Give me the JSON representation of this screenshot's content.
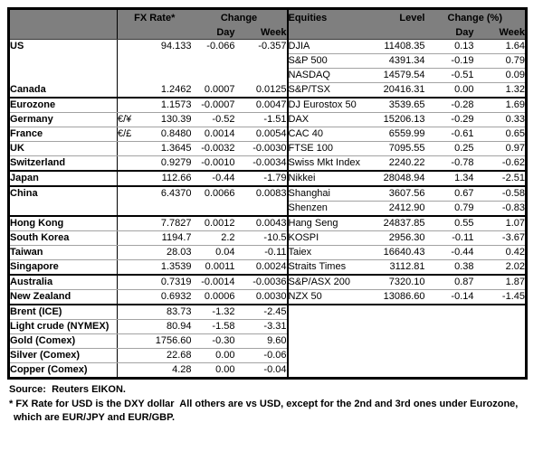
{
  "table": {
    "header": {
      "fx_rate": "FX Rate*",
      "change": "Change",
      "day": "Day",
      "week": "Week",
      "equities": "Equities",
      "level": "Level",
      "change_pct": "Change (%)",
      "day_right": "Day",
      "week_right": "Week"
    },
    "rows": [
      {
        "name": "US",
        "pair": "",
        "fx": "94.133",
        "day": "-0.066",
        "week": "-0.357",
        "equity": "DJIA",
        "level": "11408.35",
        "eday": "0.13",
        "eweek": "1.64",
        "indent": false,
        "lineL": false,
        "lineR": true,
        "thick": false
      },
      {
        "name": "",
        "pair": "",
        "fx": "",
        "day": "",
        "week": "",
        "equity": "S&P 500",
        "level": "4391.34",
        "eday": "-0.19",
        "eweek": "0.79",
        "indent": false,
        "lineL": false,
        "lineR": true,
        "thick": false
      },
      {
        "name": "",
        "pair": "",
        "fx": "",
        "day": "",
        "week": "",
        "equity": "NASDAQ",
        "level": "14579.54",
        "eday": "-0.51",
        "eweek": "0.09",
        "indent": false,
        "lineL": false,
        "lineR": true,
        "thick": false
      },
      {
        "name": "Canada",
        "pair": "",
        "fx": "1.2462",
        "day": "0.0007",
        "week": "0.0125",
        "equity": "S&P/TSX",
        "level": "20416.31",
        "eday": "0.00",
        "eweek": "1.32",
        "indent": false,
        "lineL": false,
        "lineR": false,
        "thick": true
      },
      {
        "name": "Eurozone",
        "pair": "",
        "fx": "1.1573",
        "day": "-0.0007",
        "week": "0.0047",
        "equity": "DJ Eurostox 50",
        "level": "3539.65",
        "eday": "-0.28",
        "eweek": "1.69",
        "indent": false,
        "lineL": true,
        "lineR": true,
        "thick": false
      },
      {
        "name": "Germany",
        "pair": "€/¥",
        "fx": "130.39",
        "day": "-0.52",
        "week": "-1.51",
        "equity": "DAX",
        "level": "15206.13",
        "eday": "-0.29",
        "eweek": "0.33",
        "indent": true,
        "lineL": true,
        "lineR": true,
        "thick": false
      },
      {
        "name": "France",
        "pair": "€/£",
        "fx": "0.8480",
        "day": "0.0014",
        "week": "0.0054",
        "equity": "CAC 40",
        "level": "6559.99",
        "eday": "-0.61",
        "eweek": "0.65",
        "indent": true,
        "lineL": true,
        "lineR": true,
        "thick": false
      },
      {
        "name": "UK",
        "pair": "",
        "fx": "1.3645",
        "day": "-0.0032",
        "week": "-0.0030",
        "equity": "FTSE 100",
        "level": "7095.55",
        "eday": "0.25",
        "eweek": "0.97",
        "indent": false,
        "lineL": true,
        "lineR": true,
        "thick": false
      },
      {
        "name": "Switzerland",
        "pair": "",
        "fx": "0.9279",
        "day": "-0.0010",
        "week": "-0.0034",
        "equity": "Swiss Mkt Index",
        "level": "2240.22",
        "eday": "-0.78",
        "eweek": "-0.62",
        "indent": false,
        "lineL": false,
        "lineR": false,
        "thick": true
      },
      {
        "name": "Japan",
        "pair": "",
        "fx": "112.66",
        "day": "-0.44",
        "week": "-1.79",
        "equity": "Nikkei",
        "level": "28048.94",
        "eday": "1.34",
        "eweek": "-2.51",
        "indent": false,
        "lineL": false,
        "lineR": false,
        "thick": true
      },
      {
        "name": "China",
        "pair": "",
        "fx": "6.4370",
        "day": "0.0066",
        "week": "0.0083",
        "equity": "Shanghai",
        "level": "3607.56",
        "eday": "0.67",
        "eweek": "-0.58",
        "indent": false,
        "lineL": false,
        "lineR": true,
        "thick": false
      },
      {
        "name": "",
        "pair": "",
        "fx": "",
        "day": "",
        "week": "",
        "equity": "Shenzen",
        "level": "2412.90",
        "eday": "0.79",
        "eweek": "-0.83",
        "indent": false,
        "lineL": false,
        "lineR": false,
        "thick": true
      },
      {
        "name": "Hong Kong",
        "pair": "",
        "fx": "7.7827",
        "day": "0.0012",
        "week": "0.0043",
        "equity": "Hang Seng",
        "level": "24837.85",
        "eday": "0.55",
        "eweek": "1.07",
        "indent": false,
        "lineL": true,
        "lineR": true,
        "thick": false
      },
      {
        "name": "South Korea",
        "pair": "",
        "fx": "1194.7",
        "day": "2.2",
        "week": "-10.5",
        "equity": "KOSPI",
        "level": "2956.30",
        "eday": "-0.11",
        "eweek": "-3.67",
        "indent": false,
        "lineL": true,
        "lineR": true,
        "thick": false
      },
      {
        "name": "Taiwan",
        "pair": "",
        "fx": "28.03",
        "day": "0.04",
        "week": "-0.11",
        "equity": "Taiex",
        "level": "16640.43",
        "eday": "-0.44",
        "eweek": "0.42",
        "indent": false,
        "lineL": true,
        "lineR": true,
        "thick": false
      },
      {
        "name": "Singapore",
        "pair": "",
        "fx": "1.3539",
        "day": "0.0011",
        "week": "0.0024",
        "equity": "Straits Times",
        "level": "3112.81",
        "eday": "0.38",
        "eweek": "2.02",
        "indent": false,
        "lineL": false,
        "lineR": false,
        "thick": true
      },
      {
        "name": "Australia",
        "pair": "",
        "fx": "0.7319",
        "day": "-0.0014",
        "week": "-0.0036",
        "equity": "S&P/ASX  200",
        "level": "7320.10",
        "eday": "0.87",
        "eweek": "1.87",
        "indent": false,
        "lineL": true,
        "lineR": true,
        "thick": false
      },
      {
        "name": "New Zealand",
        "pair": "",
        "fx": "0.6932",
        "day": "0.0006",
        "week": "0.0030",
        "equity": "NZX 50",
        "level": "13086.60",
        "eday": "-0.14",
        "eweek": "-1.45",
        "indent": false,
        "lineL": false,
        "lineR": false,
        "thick": true
      },
      {
        "name": "Brent (ICE)",
        "pair": "",
        "fx": "83.73",
        "day": "-1.32",
        "week": "-2.45",
        "equity": "",
        "level": "",
        "eday": "",
        "eweek": "",
        "indent": false,
        "lineL": true,
        "lineR": false,
        "thick": false
      },
      {
        "name": "Light crude (NYMEX)",
        "pair": "",
        "fx": "80.94",
        "day": "-1.58",
        "week": "-3.31",
        "equity": "",
        "level": "",
        "eday": "",
        "eweek": "",
        "indent": false,
        "lineL": true,
        "lineR": false,
        "thick": false
      },
      {
        "name": "Gold (Comex)",
        "pair": "",
        "fx": "1756.60",
        "day": "-0.30",
        "week": "9.60",
        "equity": "",
        "level": "",
        "eday": "",
        "eweek": "",
        "indent": false,
        "lineL": true,
        "lineR": false,
        "thick": false
      },
      {
        "name": "Silver (Comex)",
        "pair": "",
        "fx": "22.68",
        "day": "0.00",
        "week": "-0.06",
        "equity": "",
        "level": "",
        "eday": "",
        "eweek": "",
        "indent": false,
        "lineL": true,
        "lineR": false,
        "thick": false
      },
      {
        "name": "Copper (Comex)",
        "pair": "",
        "fx": "4.28",
        "day": "0.00",
        "week": "-0.04",
        "equity": "",
        "level": "",
        "eday": "",
        "eweek": "",
        "indent": false,
        "lineL": false,
        "lineR": false,
        "thick": false
      }
    ]
  },
  "footer": {
    "source": "Source:  Reuters EIKON.",
    "footnote_line1": "* FX Rate for USD is the DXY dollar  All others are vs USD, except for the 2nd and 3rd ones under Eurozone,",
    "footnote_line2": "which are EUR/JPY and EUR/GBP."
  },
  "colors": {
    "header_bg": "#7f7f7f",
    "header_text": "#ffffff",
    "outer_border": "#000000",
    "group_border": "#000000",
    "row_line": "#a3a3a3",
    "text": "#000000",
    "background": "#ffffff"
  }
}
